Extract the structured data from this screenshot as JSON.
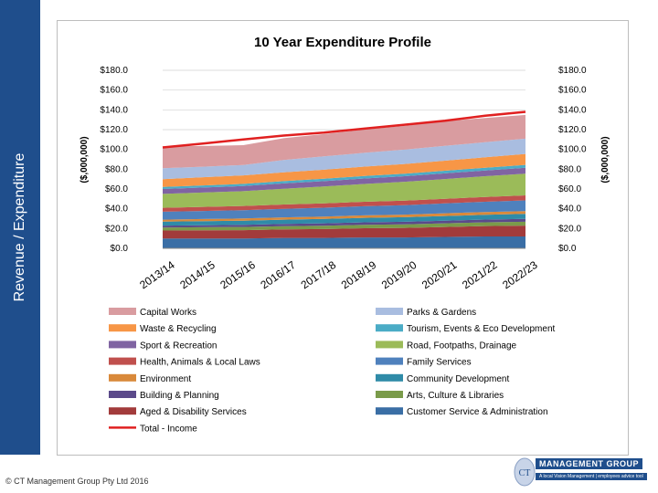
{
  "page": {
    "side_title": "Revenue / Expenditure",
    "copyright": "© CT Management Group Pty Ltd 2016",
    "logo_name": "MANAGEMENT GROUP",
    "logo_tagline": "A local Vision Management | employees advice tool",
    "logo_mark_letter": "CT"
  },
  "colors": {
    "side_bar": "#1f4e8c",
    "frame_border": "#bdbdbd"
  },
  "chart_data": {
    "type": "area",
    "stacked": true,
    "title": "10 Year Expenditure Profile",
    "ylabel_left": "($,000,000)",
    "ylabel_right": "($,000,000)",
    "ylim": [
      0,
      180
    ],
    "yticks": [
      0,
      20,
      40,
      60,
      80,
      100,
      120,
      140,
      160,
      180
    ],
    "ytick_labels": [
      "$0.0",
      "$20.0",
      "$40.0",
      "$60.0",
      "$80.0",
      "$100.0",
      "$120.0",
      "$140.0",
      "$160.0",
      "$180.0"
    ],
    "categories": [
      "2013/14",
      "2014/15",
      "2015/16",
      "2016/17",
      "2017/18",
      "2018/19",
      "2019/20",
      "2020/21",
      "2021/22",
      "2022/23"
    ],
    "series": [
      {
        "name": "Customer Service & Administration",
        "color": "#3a6ea5",
        "values": [
          10,
          10,
          10,
          10.5,
          10.5,
          11,
          11,
          11.5,
          12,
          12
        ]
      },
      {
        "name": "Aged & Disability Services",
        "color": "#a23b3b",
        "values": [
          8,
          8.2,
          8.4,
          8.6,
          9,
          9.3,
          9.7,
          10.1,
          10.5,
          11
        ]
      },
      {
        "name": "Arts, Culture & Libraries",
        "color": "#7a9b4a",
        "values": [
          3,
          3.1,
          3.2,
          3.3,
          3.4,
          3.5,
          3.6,
          3.7,
          3.8,
          3.9
        ]
      },
      {
        "name": "Building & Planning",
        "color": "#5b4a8a",
        "values": [
          2,
          2.1,
          2.2,
          2.3,
          2.4,
          2.5,
          2.6,
          2.7,
          2.8,
          2.9
        ]
      },
      {
        "name": "Community Development",
        "color": "#2f8ba8",
        "values": [
          4,
          4.1,
          4.2,
          4.3,
          4.4,
          4.5,
          4.6,
          4.7,
          4.8,
          5
        ]
      },
      {
        "name": "Environment",
        "color": "#d9893a",
        "values": [
          2,
          2.1,
          2.2,
          2.3,
          2.4,
          2.5,
          2.6,
          2.7,
          2.8,
          2.9
        ]
      },
      {
        "name": "Family Services",
        "color": "#4f81bd",
        "values": [
          8,
          8.2,
          8.4,
          8.7,
          9,
          9.3,
          9.6,
          10,
          10.4,
          10.8
        ]
      },
      {
        "name": "Health, Animals & Local Laws",
        "color": "#c0504d",
        "values": [
          4,
          4.1,
          4.2,
          4.3,
          4.4,
          4.5,
          4.6,
          4.7,
          4.8,
          5
        ]
      },
      {
        "name": "Road, Footpaths, Drainage",
        "color": "#9bbb59",
        "values": [
          14,
          14.5,
          15,
          16,
          17,
          18,
          19,
          20,
          21,
          22
        ]
      },
      {
        "name": "Sport & Recreation",
        "color": "#8064a2",
        "values": [
          5,
          5.1,
          5.2,
          5.3,
          5.4,
          5.5,
          5.6,
          5.7,
          5.8,
          6
        ]
      },
      {
        "name": "Tourism, Events & Eco Development",
        "color": "#4bacc6",
        "values": [
          2,
          2.1,
          2.2,
          2.3,
          2.4,
          2.5,
          2.6,
          2.7,
          2.8,
          2.9
        ]
      },
      {
        "name": "Waste & Recycling",
        "color": "#f79646",
        "values": [
          8,
          8.3,
          8.6,
          8.9,
          9.2,
          9.5,
          9.8,
          10.1,
          10.5,
          11
        ]
      },
      {
        "name": "Parks & Gardens",
        "color": "#a9bde0",
        "values": [
          11,
          10.6,
          10.5,
          12.5,
          13.5,
          14,
          14.5,
          15,
          15.3,
          15.5
        ]
      },
      {
        "name": "Capital Works",
        "color": "#d99ca0",
        "values": [
          22,
          21,
          20,
          22,
          22.5,
          23.5,
          24,
          25,
          24.5,
          24
        ]
      }
    ],
    "line": {
      "name": "Total - Income",
      "color": "#e02020",
      "values": [
        102,
        106,
        110,
        114,
        117,
        121,
        125,
        129,
        134,
        138
      ]
    },
    "legend": {
      "placement": "bottom",
      "columns": 2,
      "entries": [
        "Capital Works",
        "Parks & Gardens",
        "Waste & Recycling",
        "Tourism, Events & Eco Development",
        "Sport & Recreation",
        "Road, Footpaths, Drainage",
        "Health, Animals & Local Laws",
        "Family Services",
        "Environment",
        "Community Development",
        "Building & Planning",
        "Arts, Culture & Libraries",
        "Aged & Disability Services",
        "Customer Service & Administration",
        "Total - Income"
      ]
    }
  }
}
